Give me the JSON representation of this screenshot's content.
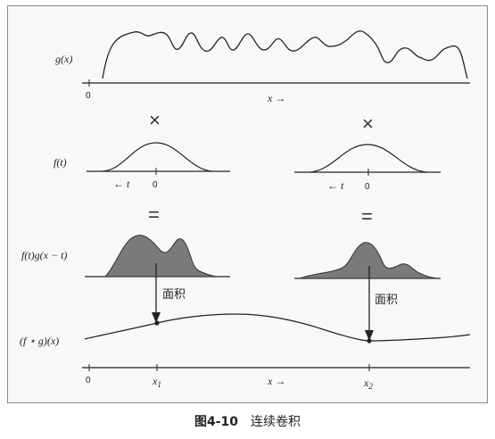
{
  "figure": {
    "caption_number": "图4-10",
    "caption_text": "连续卷积"
  },
  "labels": {
    "g_label": "g(x)",
    "f_label": "f(t)",
    "product_label": "f(t)g(x − t)",
    "conv_label": "(f ⋆ g)(x)",
    "times_symbol": "×",
    "equals_symbol": "=",
    "area_text": "面积"
  },
  "axes": {
    "g_axis_zero": "0",
    "g_axis_x": "x →",
    "f_left_zero": "0",
    "f_left_t": "← t",
    "f_right_zero": "0",
    "f_right_t": "← t",
    "conv_axis_zero": "0",
    "conv_axis_x1": "x",
    "conv_axis_x1_sub": "1",
    "conv_axis_x": "x →",
    "conv_axis_x2": "x",
    "conv_axis_x2_sub": "2"
  },
  "colors": {
    "frame_bg": "#f8f8f8",
    "line": "#222222",
    "shade_fill": "#7a7a7a"
  }
}
